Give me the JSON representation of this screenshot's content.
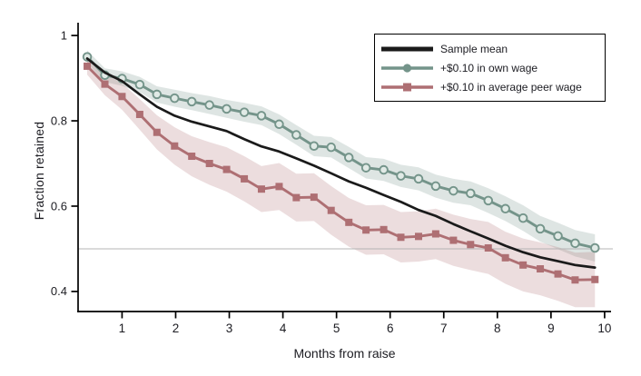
{
  "figure": {
    "background": "#ffffff",
    "text_color": "#1c1c22",
    "axis_color": "#000000"
  },
  "chart_data": {
    "type": "line",
    "title": "",
    "xlabel": "Months from raise",
    "ylabel": "Fraction retained",
    "xlim": [
      0.18,
      10.12
    ],
    "ylim": [
      0.353,
      1.03
    ],
    "xticks": [
      "1",
      "2",
      "3",
      "4",
      "5",
      "6",
      "7",
      "8",
      "9",
      "10"
    ],
    "xtick_values": [
      1,
      2,
      3,
      4,
      5,
      6,
      7,
      8,
      9,
      10
    ],
    "yticks": [
      "1",
      "0.8",
      "0.6",
      "0.4"
    ],
    "ytick_values": [
      1,
      0.8,
      0.6,
      0.4
    ],
    "grid": false,
    "reference_line_y": 0.5,
    "reference_line_color": "#b4b4b4",
    "legend_position": "top-right",
    "x": [
      0.35,
      0.68,
      1.0,
      1.33,
      1.65,
      1.98,
      2.3,
      2.63,
      2.95,
      3.28,
      3.6,
      3.93,
      4.25,
      4.58,
      4.9,
      5.23,
      5.55,
      5.88,
      6.2,
      6.53,
      6.85,
      7.18,
      7.5,
      7.83,
      8.15,
      8.48,
      8.8,
      9.13,
      9.45,
      9.82
    ],
    "series": [
      {
        "name": "Sample mean",
        "color": "#1a1a1a",
        "marker": "none",
        "linewidth": 2.7,
        "values": [
          0.946,
          0.913,
          0.893,
          0.862,
          0.833,
          0.812,
          0.798,
          0.787,
          0.776,
          0.757,
          0.74,
          0.728,
          0.712,
          0.695,
          0.677,
          0.658,
          0.643,
          0.626,
          0.61,
          0.591,
          0.577,
          0.558,
          0.541,
          0.524,
          0.507,
          0.492,
          0.48,
          0.471,
          0.462,
          0.456
        ]
      },
      {
        "name": "+$0.10 in own wage",
        "color": "#74948a",
        "band_color": "rgba(116,148,138,0.24)",
        "marker": "circle-open",
        "marker_fill": "#e1eae6",
        "linewidth": 2.9,
        "values": [
          0.95,
          0.907,
          0.899,
          0.885,
          0.862,
          0.853,
          0.845,
          0.837,
          0.828,
          0.82,
          0.812,
          0.792,
          0.767,
          0.741,
          0.738,
          0.714,
          0.69,
          0.685,
          0.671,
          0.664,
          0.647,
          0.636,
          0.63,
          0.613,
          0.594,
          0.572,
          0.547,
          0.53,
          0.513,
          0.502
        ],
        "band_halfwidth": [
          0.015,
          0.016,
          0.017,
          0.018,
          0.019,
          0.02,
          0.02,
          0.021,
          0.021,
          0.022,
          0.022,
          0.023,
          0.023,
          0.024,
          0.024,
          0.025,
          0.025,
          0.026,
          0.026,
          0.027,
          0.027,
          0.028,
          0.028,
          0.029,
          0.029,
          0.03,
          0.03,
          0.031,
          0.031,
          0.032
        ]
      },
      {
        "name": "+$0.10 in average peer wage",
        "color": "#ae6f73",
        "band_color": "rgba(174,111,115,0.24)",
        "marker": "square",
        "linewidth": 2.9,
        "values": [
          0.928,
          0.886,
          0.857,
          0.815,
          0.773,
          0.741,
          0.717,
          0.7,
          0.686,
          0.664,
          0.64,
          0.646,
          0.62,
          0.621,
          0.59,
          0.562,
          0.544,
          0.545,
          0.527,
          0.529,
          0.535,
          0.52,
          0.51,
          0.502,
          0.479,
          0.462,
          0.453,
          0.441,
          0.427,
          0.428
        ],
        "band_halfwidth": [
          0.02,
          0.026,
          0.031,
          0.036,
          0.04,
          0.044,
          0.047,
          0.05,
          0.052,
          0.053,
          0.054,
          0.055,
          0.056,
          0.056,
          0.057,
          0.057,
          0.058,
          0.058,
          0.059,
          0.059,
          0.059,
          0.06,
          0.06,
          0.061,
          0.061,
          0.062,
          0.062,
          0.063,
          0.064,
          0.065
        ]
      }
    ]
  }
}
